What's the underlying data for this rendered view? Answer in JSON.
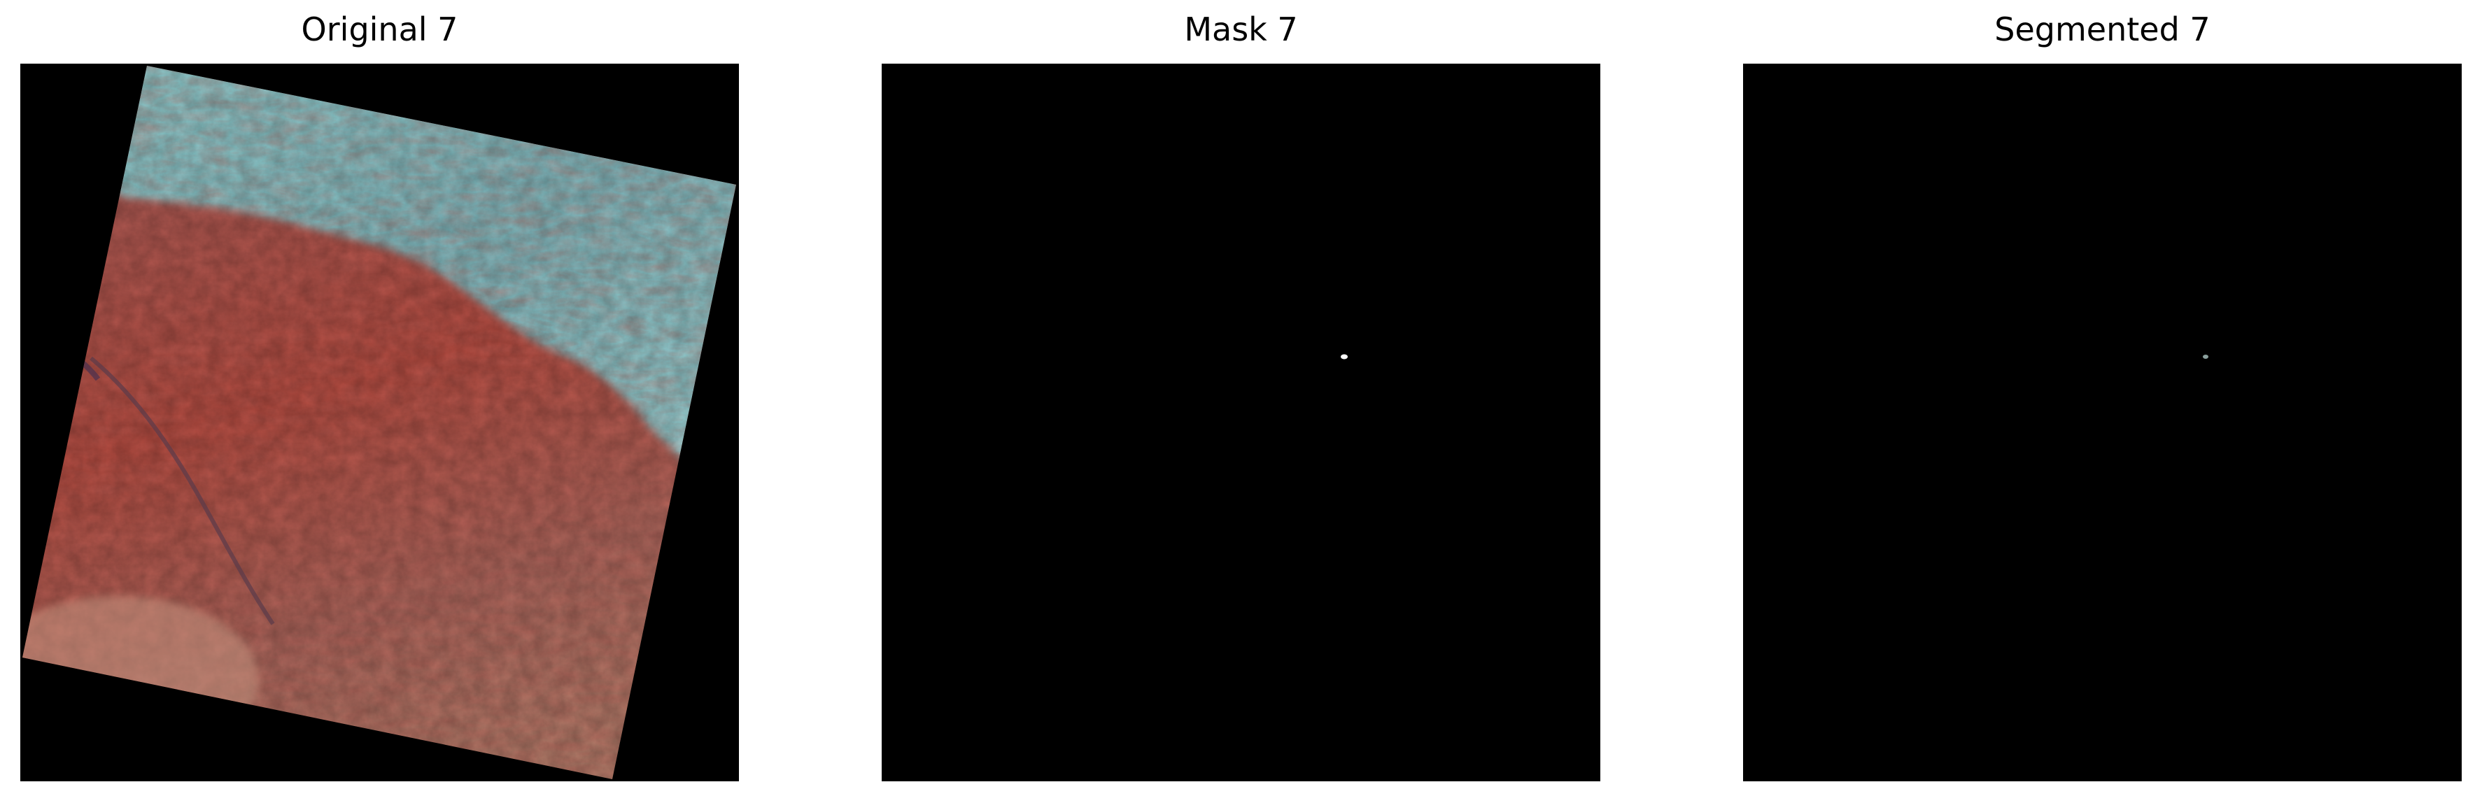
{
  "figure": {
    "panels": [
      {
        "title": "Original 7",
        "content": "satellite-scene"
      },
      {
        "title": "Mask 7",
        "content": "binary-mask"
      },
      {
        "title": "Segmented 7",
        "content": "segmented-overlay"
      }
    ]
  },
  "colors": {
    "background": "#ffffff",
    "image_background": "#000000",
    "vegetation_red": "#b5473c",
    "snow_cyan": "#86c9cc",
    "mask_spot": "#ffffff",
    "segmented_spot": "#8a9f9c"
  }
}
